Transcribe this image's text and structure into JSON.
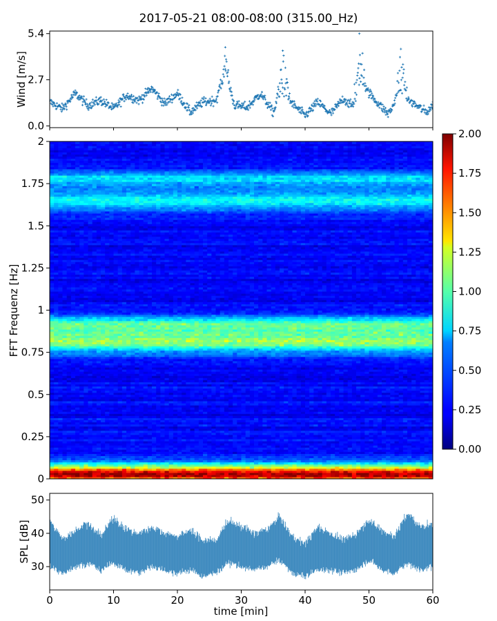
{
  "title": "2017-05-21 08:00-08:00 (315.00_Hz)",
  "chart_data": [
    {
      "type": "scatter",
      "panel": "wind",
      "ylabel": "Wind [m/s]",
      "xlim": [
        0,
        60
      ],
      "ylim": [
        -0.1,
        5.55
      ],
      "yticks": [
        0.0,
        2.7,
        5.4
      ],
      "ytick_labels": [
        "0.0",
        "2.7",
        "5.4"
      ],
      "marker": "+",
      "color": "#1f77b4",
      "x": [
        0,
        2,
        4,
        6,
        8,
        10,
        12,
        14,
        16,
        18,
        20,
        22,
        24,
        26,
        27.5,
        29,
        31,
        33,
        35,
        36.5,
        38,
        40,
        42,
        44,
        46,
        47.5,
        49,
        51,
        53,
        55,
        57,
        59,
        60
      ],
      "y": [
        1.4,
        1.0,
        1.9,
        1.2,
        1.5,
        1.0,
        1.8,
        1.5,
        2.2,
        1.3,
        1.9,
        0.8,
        1.4,
        1.5,
        2.7,
        1.2,
        1.1,
        1.9,
        0.8,
        2.0,
        1.3,
        0.6,
        1.4,
        0.7,
        1.6,
        1.1,
        2.4,
        1.5,
        0.7,
        1.8,
        1.3,
        0.8,
        1.2
      ],
      "peaks": [
        {
          "x": 27.5,
          "y": 4.6
        },
        {
          "x": 36.5,
          "y": 4.4
        },
        {
          "x": 48.5,
          "y": 5.4
        },
        {
          "x": 55.0,
          "y": 4.5
        }
      ]
    },
    {
      "type": "heatmap",
      "panel": "spectrogram",
      "ylabel": "FFT Frequenz [Hz]",
      "xlim": [
        0,
        60
      ],
      "ylim": [
        0,
        2
      ],
      "yticks": [
        0,
        0.25,
        0.5,
        0.75,
        1,
        1.25,
        1.5,
        1.75,
        2
      ],
      "ytick_labels": [
        "0",
        "0.25",
        "0.5",
        "0.75",
        "1",
        "1.25",
        "1.5",
        "1.75",
        "2"
      ],
      "colormap": "jet",
      "clim": [
        0.0,
        2.0
      ],
      "colorbar_ticks": [
        "0.00",
        "0.25",
        "0.50",
        "0.75",
        "1.00",
        "1.25",
        "1.50",
        "1.75",
        "2.00"
      ],
      "background_level": 0.25,
      "bands": [
        {
          "freq": 0.02,
          "width": 0.04,
          "level": 1.3
        },
        {
          "freq": 0.06,
          "width": 0.05,
          "level": 0.7
        },
        {
          "freq": 0.82,
          "width": 0.07,
          "level": 0.8
        },
        {
          "freq": 0.92,
          "width": 0.05,
          "level": 0.55
        },
        {
          "freq": 1.65,
          "width": 0.06,
          "level": 0.5
        },
        {
          "freq": 1.78,
          "width": 0.05,
          "level": 0.45
        }
      ]
    },
    {
      "type": "area",
      "panel": "spl",
      "ylabel": "SPL [dB]",
      "xlabel": "time [min]",
      "xlim": [
        0,
        60
      ],
      "ylim": [
        23,
        52
      ],
      "yticks": [
        30,
        40,
        50
      ],
      "ytick_labels": [
        "30",
        "40",
        "50"
      ],
      "xticks": [
        0,
        10,
        20,
        30,
        40,
        50,
        60
      ],
      "xtick_labels": [
        "0",
        "10",
        "20",
        "30",
        "40",
        "50",
        "60"
      ],
      "color": "#1f77b4",
      "x": [
        0,
        2,
        4,
        6,
        8,
        10,
        12,
        14,
        16,
        18,
        20,
        22,
        24,
        26,
        28,
        30,
        32,
        34,
        36,
        38,
        40,
        42,
        44,
        46,
        48,
        50,
        52,
        54,
        56,
        58,
        60
      ],
      "y_upper": [
        44,
        38,
        41,
        43,
        39,
        45,
        41,
        40,
        42,
        40,
        39,
        41,
        38,
        38,
        44,
        42,
        40,
        41,
        45,
        39,
        37,
        42,
        40,
        38,
        40,
        44,
        41,
        39,
        46,
        42,
        43
      ],
      "y_lower": [
        30,
        28,
        30,
        31,
        29,
        31,
        29,
        28,
        30,
        29,
        28,
        29,
        27,
        28,
        31,
        30,
        29,
        30,
        32,
        28,
        27,
        29,
        29,
        28,
        29,
        32,
        29,
        28,
        31,
        29,
        30
      ]
    }
  ]
}
